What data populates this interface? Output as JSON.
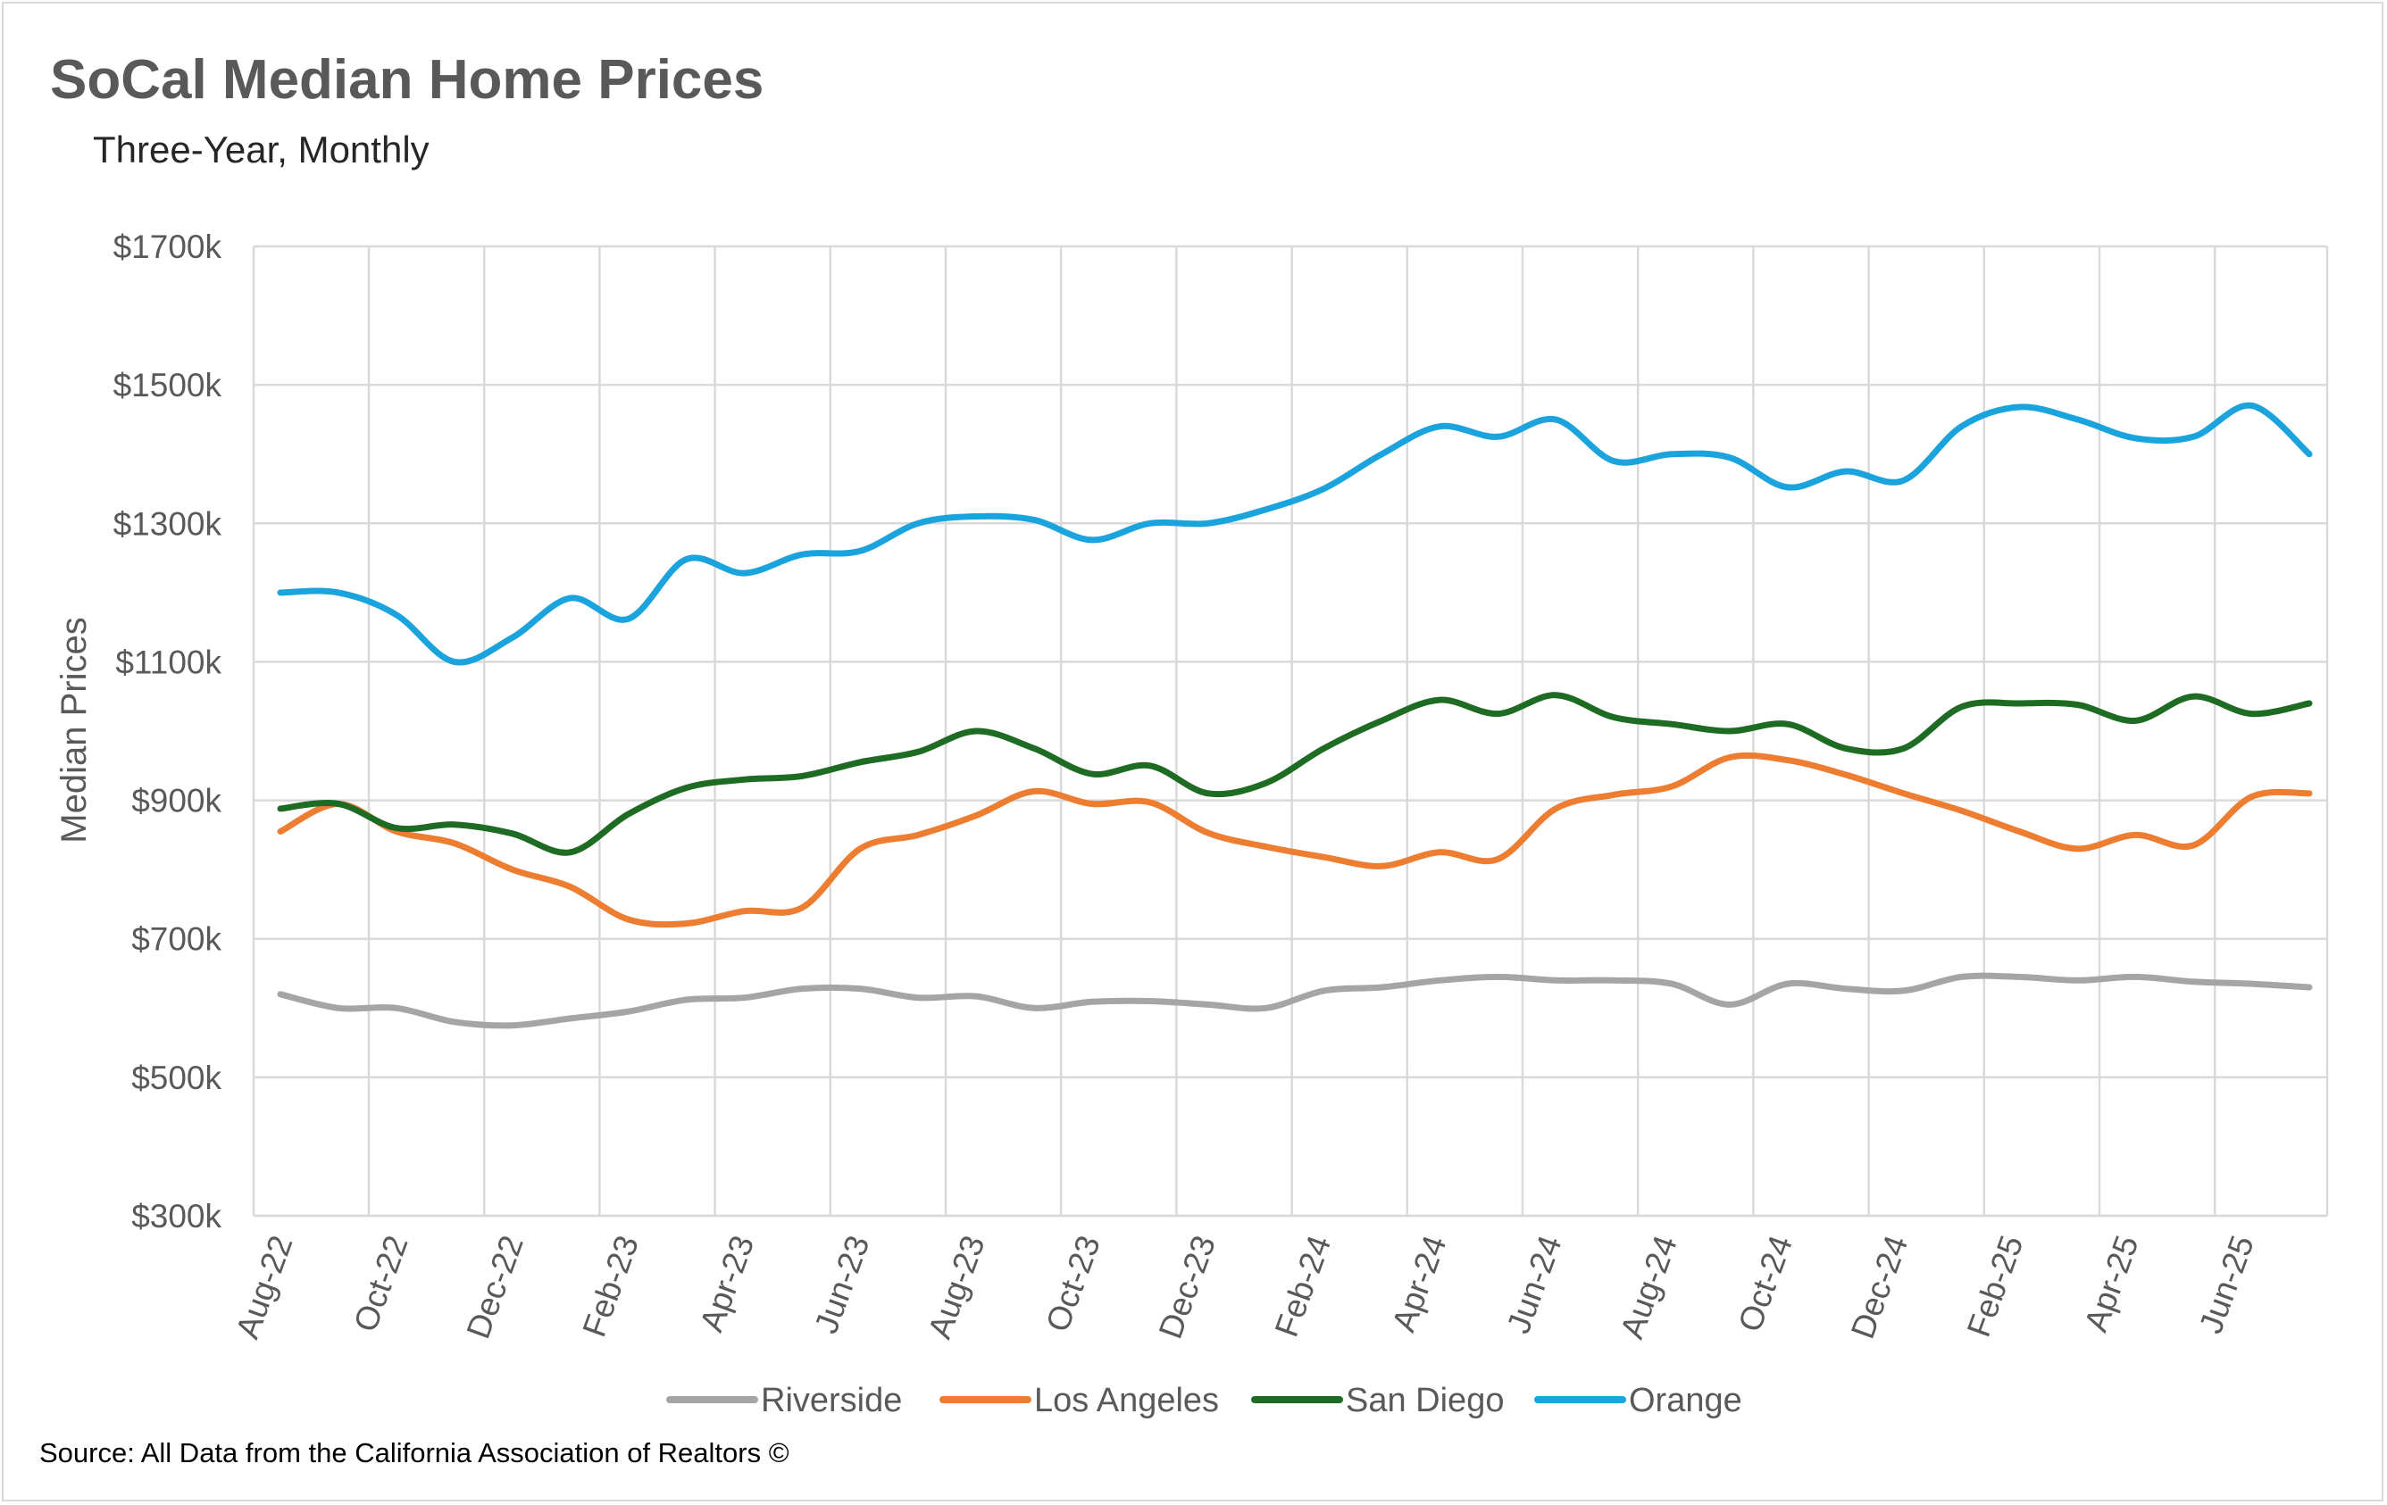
{
  "title": "SoCal Median Home Prices",
  "subtitle": "Three-Year, Monthly",
  "source": "Source: All Data from the California Association of Realtors ©",
  "chart_data": {
    "type": "line",
    "title": "SoCal Median Home Prices",
    "subtitle": "Three-Year, Monthly",
    "xlabel": "",
    "ylabel": "Median Prices",
    "ylim": [
      300,
      1700
    ],
    "yticks": [
      300,
      500,
      700,
      900,
      1100,
      1300,
      1500,
      1700
    ],
    "ytick_labels": [
      "$300k",
      "$500k",
      "$700k",
      "$900k",
      "$1100k",
      "$1300k",
      "$1500k",
      "$1700k"
    ],
    "x": [
      "Aug-22",
      "Sep-22",
      "Oct-22",
      "Nov-22",
      "Dec-22",
      "Jan-23",
      "Feb-23",
      "Mar-23",
      "Apr-23",
      "May-23",
      "Jun-23",
      "Jul-23",
      "Aug-23",
      "Sep-23",
      "Oct-23",
      "Nov-23",
      "Dec-23",
      "Jan-24",
      "Feb-24",
      "Mar-24",
      "Apr-24",
      "May-24",
      "Jun-24",
      "Jul-24",
      "Aug-24",
      "Sep-24",
      "Oct-24",
      "Nov-24",
      "Dec-24",
      "Jan-25",
      "Feb-25",
      "Mar-25",
      "Apr-25",
      "May-25",
      "Jun-25",
      "Jul-25"
    ],
    "xtick_labels": [
      "Aug-22",
      "Oct-22",
      "Dec-22",
      "Feb-23",
      "Apr-23",
      "Jun-23",
      "Aug-23",
      "Oct-23",
      "Dec-23",
      "Feb-24",
      "Apr-24",
      "Jun-24",
      "Aug-24",
      "Oct-24",
      "Dec-24",
      "Feb-25",
      "Apr-25",
      "Jun-25"
    ],
    "grid": true,
    "legend_position": "bottom",
    "series": [
      {
        "name": "Riverside",
        "color": "#a5a5a5",
        "values": [
          620,
          600,
          600,
          580,
          575,
          585,
          595,
          612,
          615,
          628,
          628,
          615,
          617,
          600,
          609,
          610,
          605,
          600,
          625,
          630,
          640,
          645,
          640,
          640,
          635,
          605,
          635,
          628,
          625,
          645,
          645,
          640,
          645,
          638,
          635,
          630
        ]
      },
      {
        "name": "Los Angeles",
        "color": "#ed7d31",
        "values": [
          855,
          895,
          855,
          838,
          800,
          775,
          728,
          722,
          740,
          745,
          830,
          850,
          878,
          913,
          895,
          897,
          853,
          833,
          818,
          805,
          825,
          815,
          888,
          908,
          920,
          962,
          958,
          937,
          910,
          885,
          855,
          830,
          850,
          835,
          905,
          910
        ]
      },
      {
        "name": "San Diego",
        "color": "#1e6b24",
        "values": [
          888,
          895,
          860,
          865,
          852,
          825,
          880,
          918,
          930,
          935,
          955,
          970,
          1000,
          975,
          938,
          950,
          910,
          925,
          975,
          1015,
          1045,
          1025,
          1052,
          1020,
          1010,
          1000,
          1010,
          975,
          975,
          1035,
          1040,
          1038,
          1015,
          1050,
          1025,
          1040
        ]
      },
      {
        "name": "Orange",
        "color": "#1aa3dc",
        "values": [
          1200,
          1200,
          1168,
          1100,
          1135,
          1192,
          1162,
          1248,
          1228,
          1255,
          1260,
          1300,
          1310,
          1305,
          1276,
          1300,
          1300,
          1320,
          1350,
          1400,
          1440,
          1425,
          1450,
          1390,
          1400,
          1395,
          1352,
          1375,
          1362,
          1440,
          1468,
          1450,
          1423,
          1425,
          1470,
          1400
        ]
      }
    ]
  }
}
